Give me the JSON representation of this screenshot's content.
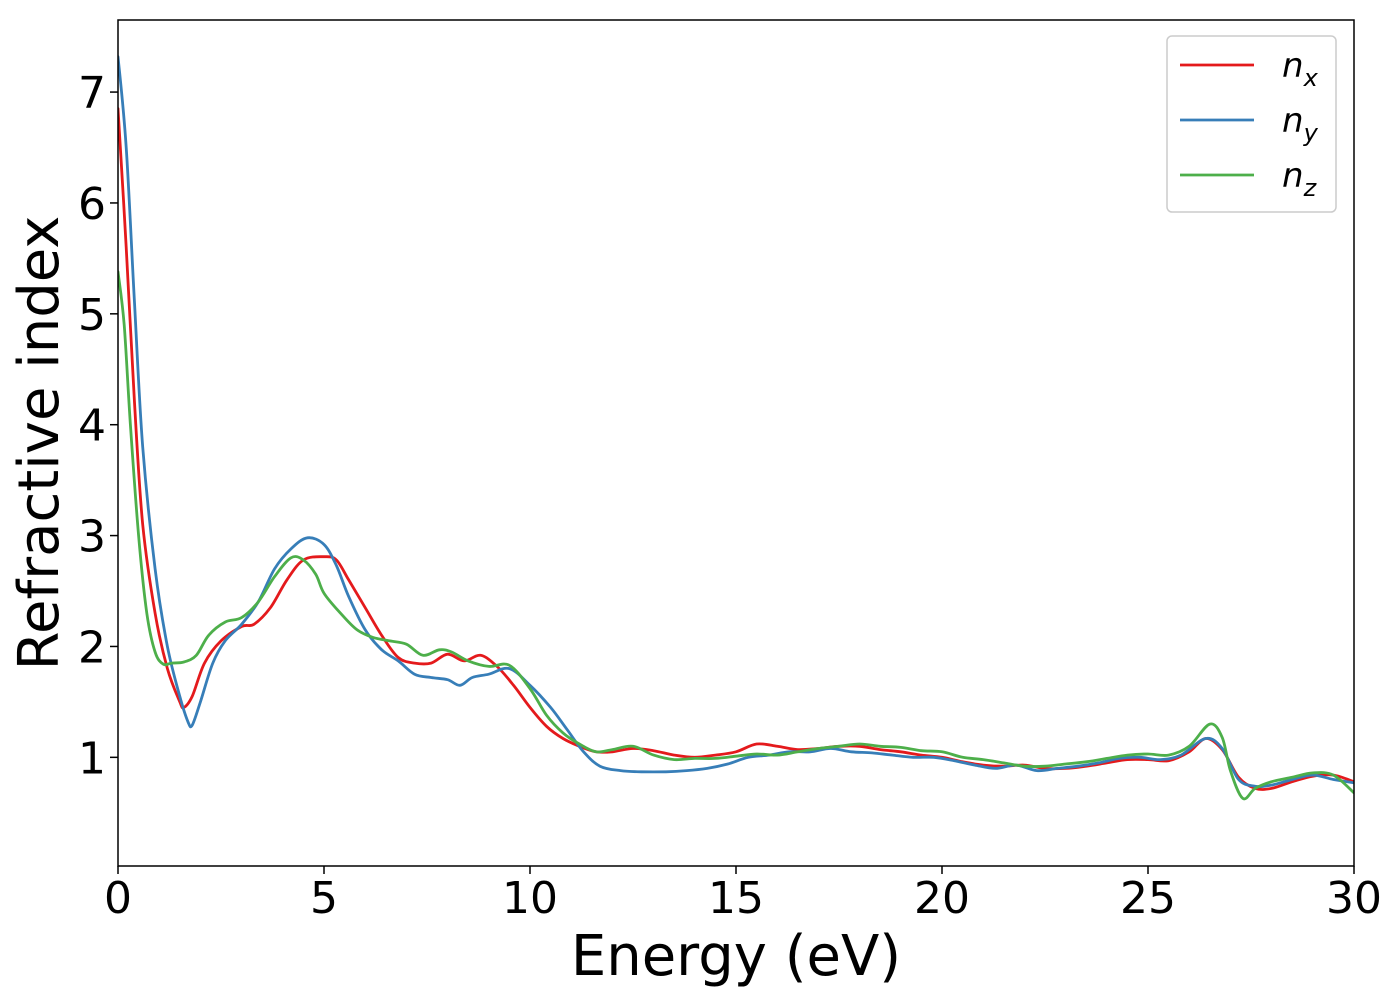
{
  "chart_data": {
    "type": "line",
    "title": "",
    "xlabel": "Energy (eV)",
    "ylabel": "Refractive index",
    "xlim": [
      0,
      30
    ],
    "ylim": [
      0.02,
      7.65
    ],
    "xticks": [
      "0",
      "5",
      "10",
      "15",
      "20",
      "25",
      "30"
    ],
    "yticks": [
      "1",
      "2",
      "3",
      "4",
      "5",
      "6",
      "7"
    ],
    "grid": false,
    "legend_position": "top-right",
    "series": [
      {
        "name": "n",
        "subscript": "x",
        "color": "#e41a1c",
        "points": [
          [
            0,
            6.85
          ],
          [
            0.2,
            5.6
          ],
          [
            0.4,
            4.2
          ],
          [
            0.6,
            3.1
          ],
          [
            0.9,
            2.3
          ],
          [
            1.2,
            1.8
          ],
          [
            1.5,
            1.5
          ],
          [
            1.6,
            1.45
          ],
          [
            1.8,
            1.55
          ],
          [
            2.1,
            1.85
          ],
          [
            2.5,
            2.05
          ],
          [
            3.0,
            2.18
          ],
          [
            3.3,
            2.2
          ],
          [
            3.7,
            2.35
          ],
          [
            4.1,
            2.6
          ],
          [
            4.5,
            2.78
          ],
          [
            5.0,
            2.81
          ],
          [
            5.3,
            2.78
          ],
          [
            5.6,
            2.6
          ],
          [
            6.0,
            2.35
          ],
          [
            6.4,
            2.1
          ],
          [
            6.8,
            1.9
          ],
          [
            7.2,
            1.85
          ],
          [
            7.6,
            1.85
          ],
          [
            8.0,
            1.93
          ],
          [
            8.4,
            1.87
          ],
          [
            8.8,
            1.92
          ],
          [
            9.2,
            1.82
          ],
          [
            9.6,
            1.65
          ],
          [
            10.0,
            1.45
          ],
          [
            10.4,
            1.28
          ],
          [
            10.8,
            1.17
          ],
          [
            11.2,
            1.1
          ],
          [
            11.6,
            1.05
          ],
          [
            12.0,
            1.05
          ],
          [
            12.5,
            1.08
          ],
          [
            13.0,
            1.06
          ],
          [
            13.5,
            1.02
          ],
          [
            14.0,
            1.0
          ],
          [
            14.5,
            1.02
          ],
          [
            15.0,
            1.05
          ],
          [
            15.5,
            1.12
          ],
          [
            16.0,
            1.1
          ],
          [
            16.5,
            1.07
          ],
          [
            17.0,
            1.08
          ],
          [
            17.5,
            1.1
          ],
          [
            18.0,
            1.1
          ],
          [
            18.5,
            1.07
          ],
          [
            19.0,
            1.05
          ],
          [
            19.5,
            1.02
          ],
          [
            20.0,
            1.0
          ],
          [
            20.5,
            0.96
          ],
          [
            21.0,
            0.93
          ],
          [
            21.5,
            0.92
          ],
          [
            22.0,
            0.93
          ],
          [
            22.5,
            0.9
          ],
          [
            23.0,
            0.9
          ],
          [
            23.5,
            0.92
          ],
          [
            24.0,
            0.95
          ],
          [
            24.5,
            0.98
          ],
          [
            25.0,
            0.98
          ],
          [
            25.5,
            0.97
          ],
          [
            26.0,
            1.05
          ],
          [
            26.4,
            1.17
          ],
          [
            26.8,
            1.07
          ],
          [
            27.2,
            0.82
          ],
          [
            27.6,
            0.72
          ],
          [
            28.0,
            0.72
          ],
          [
            28.5,
            0.78
          ],
          [
            29.0,
            0.83
          ],
          [
            29.5,
            0.84
          ],
          [
            30.0,
            0.78
          ]
        ]
      },
      {
        "name": "n",
        "subscript": "y",
        "color": "#377eb8",
        "points": [
          [
            0,
            7.32
          ],
          [
            0.2,
            6.5
          ],
          [
            0.4,
            5.1
          ],
          [
            0.6,
            3.8
          ],
          [
            0.9,
            2.7
          ],
          [
            1.2,
            2.0
          ],
          [
            1.5,
            1.55
          ],
          [
            1.7,
            1.32
          ],
          [
            1.8,
            1.29
          ],
          [
            2.0,
            1.5
          ],
          [
            2.3,
            1.85
          ],
          [
            2.6,
            2.05
          ],
          [
            3.0,
            2.2
          ],
          [
            3.4,
            2.4
          ],
          [
            3.8,
            2.7
          ],
          [
            4.2,
            2.88
          ],
          [
            4.6,
            2.98
          ],
          [
            5.0,
            2.92
          ],
          [
            5.3,
            2.73
          ],
          [
            5.6,
            2.45
          ],
          [
            6.0,
            2.15
          ],
          [
            6.4,
            1.97
          ],
          [
            6.8,
            1.87
          ],
          [
            7.2,
            1.75
          ],
          [
            7.6,
            1.72
          ],
          [
            8.0,
            1.7
          ],
          [
            8.3,
            1.65
          ],
          [
            8.6,
            1.72
          ],
          [
            9.0,
            1.75
          ],
          [
            9.5,
            1.8
          ],
          [
            10.0,
            1.65
          ],
          [
            10.5,
            1.45
          ],
          [
            10.9,
            1.25
          ],
          [
            11.3,
            1.05
          ],
          [
            11.7,
            0.92
          ],
          [
            12.2,
            0.88
          ],
          [
            12.7,
            0.87
          ],
          [
            13.3,
            0.87
          ],
          [
            13.8,
            0.88
          ],
          [
            14.3,
            0.9
          ],
          [
            14.8,
            0.94
          ],
          [
            15.3,
            1.0
          ],
          [
            15.8,
            1.02
          ],
          [
            16.3,
            1.05
          ],
          [
            16.8,
            1.05
          ],
          [
            17.3,
            1.08
          ],
          [
            17.8,
            1.05
          ],
          [
            18.3,
            1.04
          ],
          [
            18.8,
            1.02
          ],
          [
            19.3,
            1.0
          ],
          [
            19.8,
            1.0
          ],
          [
            20.3,
            0.97
          ],
          [
            20.8,
            0.93
          ],
          [
            21.3,
            0.9
          ],
          [
            21.8,
            0.93
          ],
          [
            22.3,
            0.88
          ],
          [
            22.8,
            0.9
          ],
          [
            23.3,
            0.92
          ],
          [
            23.8,
            0.95
          ],
          [
            24.3,
            0.99
          ],
          [
            24.8,
            1.0
          ],
          [
            25.3,
            0.98
          ],
          [
            25.8,
            1.02
          ],
          [
            26.4,
            1.17
          ],
          [
            26.8,
            1.08
          ],
          [
            27.2,
            0.8
          ],
          [
            27.6,
            0.74
          ],
          [
            28.0,
            0.75
          ],
          [
            28.5,
            0.8
          ],
          [
            29.0,
            0.84
          ],
          [
            29.5,
            0.8
          ],
          [
            30.0,
            0.77
          ]
        ]
      },
      {
        "name": "n",
        "subscript": "z",
        "color": "#4daf4a",
        "points": [
          [
            0,
            5.38
          ],
          [
            0.15,
            4.9
          ],
          [
            0.3,
            4.0
          ],
          [
            0.5,
            3.0
          ],
          [
            0.7,
            2.3
          ],
          [
            0.9,
            1.95
          ],
          [
            1.1,
            1.84
          ],
          [
            1.3,
            1.85
          ],
          [
            1.6,
            1.86
          ],
          [
            1.9,
            1.92
          ],
          [
            2.2,
            2.1
          ],
          [
            2.6,
            2.22
          ],
          [
            3.0,
            2.26
          ],
          [
            3.4,
            2.4
          ],
          [
            3.8,
            2.63
          ],
          [
            4.2,
            2.8
          ],
          [
            4.5,
            2.78
          ],
          [
            4.8,
            2.65
          ],
          [
            5.0,
            2.48
          ],
          [
            5.4,
            2.3
          ],
          [
            5.8,
            2.15
          ],
          [
            6.2,
            2.08
          ],
          [
            6.6,
            2.05
          ],
          [
            7.0,
            2.02
          ],
          [
            7.4,
            1.92
          ],
          [
            7.8,
            1.97
          ],
          [
            8.1,
            1.95
          ],
          [
            8.5,
            1.87
          ],
          [
            9.0,
            1.82
          ],
          [
            9.5,
            1.83
          ],
          [
            10.0,
            1.62
          ],
          [
            10.4,
            1.38
          ],
          [
            10.8,
            1.22
          ],
          [
            11.2,
            1.12
          ],
          [
            11.6,
            1.05
          ],
          [
            12.0,
            1.07
          ],
          [
            12.5,
            1.1
          ],
          [
            13.0,
            1.02
          ],
          [
            13.5,
            0.98
          ],
          [
            14.0,
            0.99
          ],
          [
            14.5,
            0.99
          ],
          [
            15.0,
            1.01
          ],
          [
            15.5,
            1.03
          ],
          [
            16.0,
            1.02
          ],
          [
            16.5,
            1.05
          ],
          [
            17.0,
            1.08
          ],
          [
            17.5,
            1.1
          ],
          [
            18.0,
            1.12
          ],
          [
            18.5,
            1.1
          ],
          [
            19.0,
            1.09
          ],
          [
            19.5,
            1.06
          ],
          [
            20.0,
            1.05
          ],
          [
            20.5,
            1.0
          ],
          [
            21.0,
            0.98
          ],
          [
            21.5,
            0.95
          ],
          [
            22.0,
            0.92
          ],
          [
            22.5,
            0.92
          ],
          [
            23.0,
            0.94
          ],
          [
            23.5,
            0.96
          ],
          [
            24.0,
            0.99
          ],
          [
            24.5,
            1.02
          ],
          [
            25.0,
            1.03
          ],
          [
            25.5,
            1.02
          ],
          [
            26.0,
            1.1
          ],
          [
            26.5,
            1.3
          ],
          [
            26.8,
            1.18
          ],
          [
            27.0,
            0.88
          ],
          [
            27.3,
            0.63
          ],
          [
            27.6,
            0.72
          ],
          [
            28.0,
            0.78
          ],
          [
            28.5,
            0.82
          ],
          [
            29.0,
            0.86
          ],
          [
            29.5,
            0.84
          ],
          [
            30.0,
            0.68
          ]
        ]
      }
    ]
  }
}
